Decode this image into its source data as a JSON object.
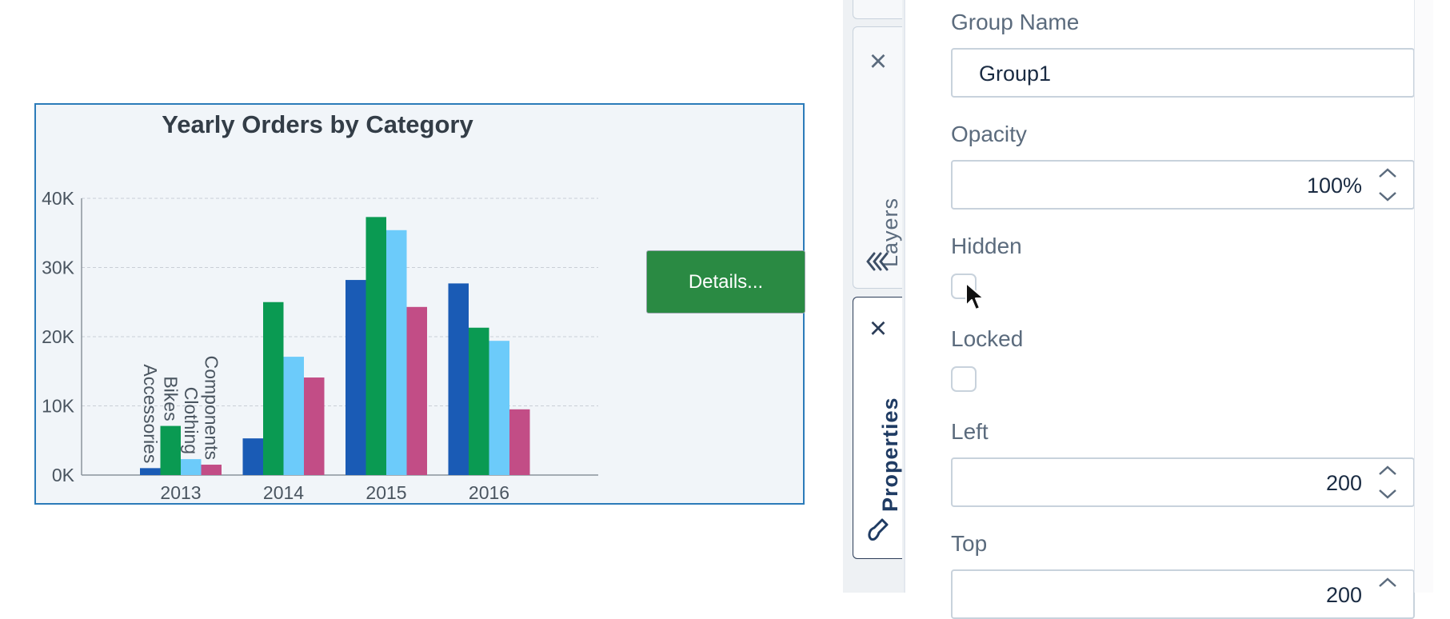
{
  "chart_data": {
    "type": "bar",
    "title": "Yearly Orders by Category",
    "categories": [
      "2013",
      "2014",
      "2015",
      "2016"
    ],
    "series": [
      {
        "name": "Accessories",
        "color": "#1a5bb5",
        "values": [
          1000,
          5300,
          28200,
          27700
        ]
      },
      {
        "name": "Bikes",
        "color": "#0a9a52",
        "values": [
          7100,
          25000,
          37300,
          21300
        ]
      },
      {
        "name": "Clothing",
        "color": "#6ccbfa",
        "values": [
          2300,
          17100,
          35400,
          19400
        ]
      },
      {
        "name": "Components",
        "color": "#c24d86",
        "values": [
          1500,
          14100,
          24300,
          9500
        ]
      }
    ],
    "y_ticks": [
      "0K",
      "10K",
      "20K",
      "30K",
      "40K"
    ],
    "ylim": [
      0,
      40000
    ],
    "grid": true,
    "series_labels_on": "2013"
  },
  "details_button": "Details...",
  "tabs": {
    "layers": "Layers",
    "properties": "Properties"
  },
  "properties": {
    "group_name_label": "Group Name",
    "group_name_value": "Group1",
    "opacity_label": "Opacity",
    "opacity_value": "100%",
    "hidden_label": "Hidden",
    "locked_label": "Locked",
    "left_label": "Left",
    "left_value": "200",
    "top_label": "Top",
    "top_value": "200"
  },
  "colors": {
    "accent_green": "#2a8a43",
    "selection_border": "#2b7bb9",
    "tab_active_text": "#1f3b63"
  }
}
